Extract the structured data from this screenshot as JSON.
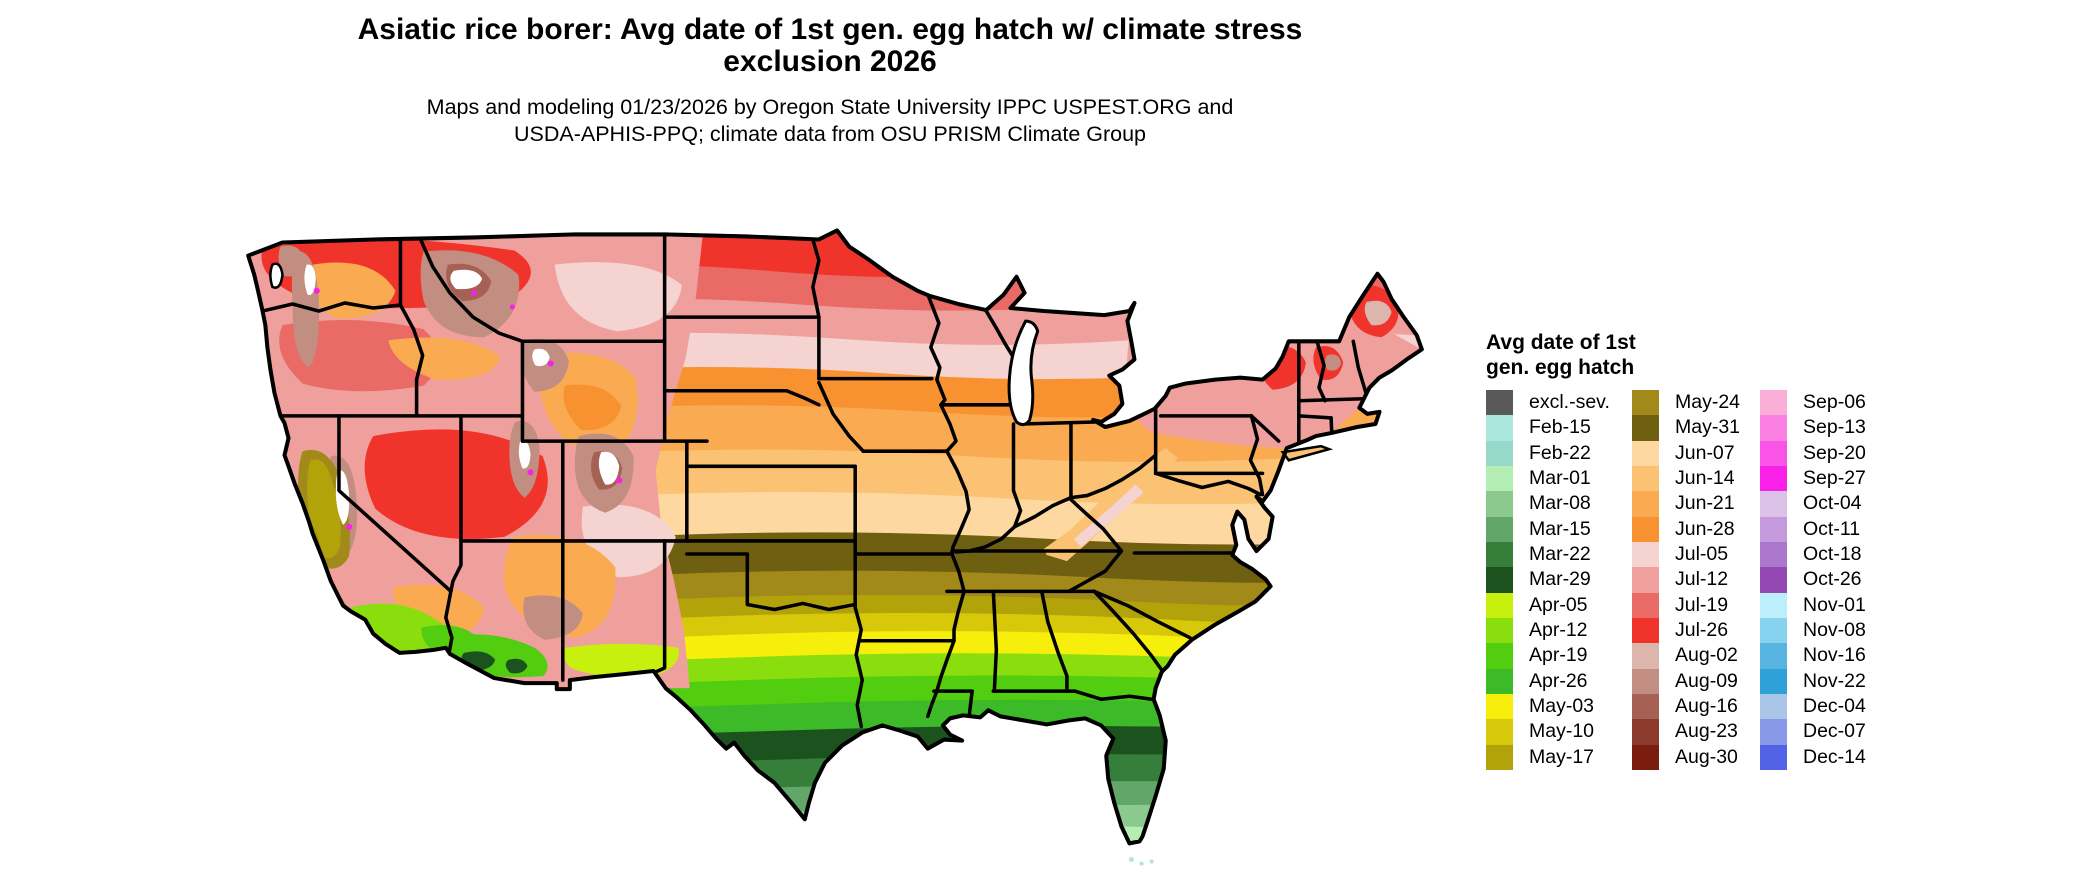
{
  "title": "Asiatic rice borer: Avg date of 1st gen. egg hatch w/ climate stress exclusion 2026",
  "subtitle": "Maps and modeling 01/23/2026 by Oregon State University IPPC USPEST.ORG and USDA-APHIS-PPQ; climate data from OSU PRISM Climate Group",
  "legend": {
    "title": "Avg date of 1st gen. egg hatch",
    "columns": [
      [
        {
          "label": "excl.-sev.",
          "color": "excl"
        },
        {
          "label": "Feb-15",
          "color": "feb15"
        },
        {
          "label": "Feb-22",
          "color": "feb22"
        },
        {
          "label": "Mar-01",
          "color": "mar01"
        },
        {
          "label": "Mar-08",
          "color": "mar08"
        },
        {
          "label": "Mar-15",
          "color": "mar15"
        },
        {
          "label": "Mar-22",
          "color": "mar22"
        },
        {
          "label": "Mar-29",
          "color": "mar29"
        },
        {
          "label": "Apr-05",
          "color": "apr05"
        },
        {
          "label": "Apr-12",
          "color": "apr12"
        },
        {
          "label": "Apr-19",
          "color": "apr19"
        },
        {
          "label": "Apr-26",
          "color": "apr26"
        },
        {
          "label": "May-03",
          "color": "may03"
        },
        {
          "label": "May-10",
          "color": "may10"
        },
        {
          "label": "May-17",
          "color": "may17"
        }
      ],
      [
        {
          "label": "May-24",
          "color": "may24"
        },
        {
          "label": "May-31",
          "color": "may31"
        },
        {
          "label": "Jun-07",
          "color": "jun07"
        },
        {
          "label": "Jun-14",
          "color": "jun14"
        },
        {
          "label": "Jun-21",
          "color": "jun21"
        },
        {
          "label": "Jun-28",
          "color": "jun28"
        },
        {
          "label": "Jul-05",
          "color": "jul05"
        },
        {
          "label": "Jul-12",
          "color": "jul12"
        },
        {
          "label": "Jul-19",
          "color": "jul19"
        },
        {
          "label": "Jul-26",
          "color": "jul26"
        },
        {
          "label": "Aug-02",
          "color": "aug02"
        },
        {
          "label": "Aug-09",
          "color": "aug09"
        },
        {
          "label": "Aug-16",
          "color": "aug16"
        },
        {
          "label": "Aug-23",
          "color": "aug23"
        },
        {
          "label": "Aug-30",
          "color": "aug30"
        }
      ],
      [
        {
          "label": "Sep-06",
          "color": "sep06"
        },
        {
          "label": "Sep-13",
          "color": "sep13"
        },
        {
          "label": "Sep-20",
          "color": "sep20"
        },
        {
          "label": "Sep-27",
          "color": "sep27"
        },
        {
          "label": "Oct-04",
          "color": "oct04"
        },
        {
          "label": "Oct-11",
          "color": "oct11"
        },
        {
          "label": "Oct-18",
          "color": "oct18"
        },
        {
          "label": "Oct-26",
          "color": "oct26"
        },
        {
          "label": "Nov-01",
          "color": "nov01"
        },
        {
          "label": "Nov-08",
          "color": "nov08"
        },
        {
          "label": "Nov-16",
          "color": "nov16"
        },
        {
          "label": "Nov-22",
          "color": "nov22"
        },
        {
          "label": "Dec-04",
          "color": "dec04"
        },
        {
          "label": "Dec-07",
          "color": "dec07"
        },
        {
          "label": "Dec-14",
          "color": "dec14"
        }
      ]
    ]
  },
  "palette": {
    "excl": "#595959",
    "feb15": "#abe7dc",
    "feb22": "#96d8ca",
    "mar01": "#b5eeb5",
    "mar08": "#8cc98c",
    "mar15": "#63a66a",
    "mar22": "#357f3a",
    "mar29": "#1c521e",
    "apr05": "#c8f00f",
    "apr12": "#8ade0d",
    "apr19": "#52cd10",
    "apr26": "#3cba28",
    "may03": "#f5ef0b",
    "may10": "#d7c90a",
    "may17": "#b3a30b",
    "may24": "#a18a19",
    "may31": "#6f5f11",
    "jun07": "#fdd9a1",
    "jun14": "#fbc273",
    "jun21": "#faab52",
    "jun28": "#f89231",
    "jul05": "#f4d3d0",
    "jul12": "#efa09c",
    "jul19": "#ea6a66",
    "jul26": "#f1342b",
    "aug02": "#dcb5ad",
    "aug09": "#c18e81",
    "aug16": "#a66054",
    "aug23": "#8c3a2c",
    "aug30": "#7a1d0f",
    "sep06": "#fbaed6",
    "sep13": "#fa81e3",
    "sep20": "#fa53e8",
    "sep27": "#f920e8",
    "oct04": "#dcc2e8",
    "oct11": "#c49add",
    "oct18": "#ab77cd",
    "oct26": "#9448b3",
    "nov01": "#bceefb",
    "nov08": "#87d3ef",
    "nov16": "#58b5e2",
    "nov22": "#2fa0d8",
    "dec04": "#a9c5e8",
    "dec07": "#8899e8",
    "dec14": "#5263e8"
  }
}
